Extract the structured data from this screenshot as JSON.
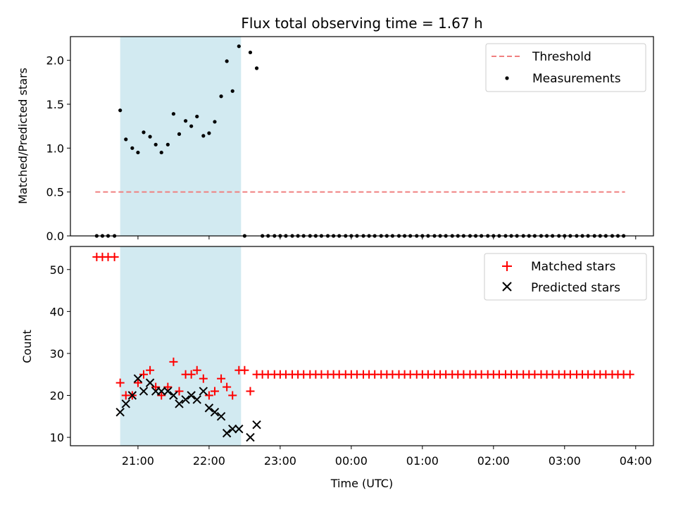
{
  "chart_data": {
    "title": "Flux total observing time = 1.67 h",
    "xlabel": "Time (UTC)",
    "x_unit": "hours_since_20:00_UTC",
    "xlim": [
      0.05,
      8.25
    ],
    "xticks": [
      {
        "v": 1,
        "label": "21:00"
      },
      {
        "v": 2,
        "label": "22:00"
      },
      {
        "v": 3,
        "label": "23:00"
      },
      {
        "v": 4,
        "label": "00:00"
      },
      {
        "v": 5,
        "label": "01:00"
      },
      {
        "v": 6,
        "label": "02:00"
      },
      {
        "v": 7,
        "label": "03:00"
      },
      {
        "v": 8,
        "label": "04:00"
      }
    ],
    "shaded_span": {
      "x0": 0.75,
      "x1": 2.45,
      "color": "#add8e6"
    },
    "panels": [
      {
        "type": "scatter",
        "ylabel": "Matched/Predicted stars",
        "ylim": [
          0,
          2.27
        ],
        "yticks": [
          {
            "v": 0,
            "label": "0.0"
          },
          {
            "v": 0.5,
            "label": "0.5"
          },
          {
            "v": 1.0,
            "label": "1.0"
          },
          {
            "v": 1.5,
            "label": "1.5"
          },
          {
            "v": 2.0,
            "label": "2.0"
          }
        ],
        "legend": {
          "position": "upper-right",
          "entries": [
            "Threshold",
            "Measurements"
          ]
        },
        "threshold": {
          "name": "Threshold",
          "value": 0.5,
          "x_start": 0.4,
          "x_end": 7.85,
          "color": "#f08080"
        },
        "measurements": {
          "name": "Measurements",
          "color": "#000000",
          "points": [
            [
              0.42,
              0
            ],
            [
              0.5,
              0
            ],
            [
              0.58,
              0
            ],
            [
              0.67,
              0
            ],
            [
              0.75,
              1.43
            ],
            [
              0.83,
              1.1
            ],
            [
              0.92,
              1.0
            ],
            [
              1.0,
              0.95
            ],
            [
              1.08,
              1.18
            ],
            [
              1.17,
              1.13
            ],
            [
              1.25,
              1.04
            ],
            [
              1.33,
              0.95
            ],
            [
              1.42,
              1.04
            ],
            [
              1.5,
              1.39
            ],
            [
              1.58,
              1.16
            ],
            [
              1.67,
              1.31
            ],
            [
              1.75,
              1.25
            ],
            [
              1.83,
              1.36
            ],
            [
              1.92,
              1.14
            ],
            [
              2.0,
              1.17
            ],
            [
              2.08,
              1.3
            ],
            [
              2.17,
              1.59
            ],
            [
              2.25,
              1.99
            ],
            [
              2.33,
              1.65
            ],
            [
              2.42,
              2.16
            ],
            [
              2.5,
              0
            ],
            [
              2.58,
              2.09
            ],
            [
              2.67,
              1.91
            ],
            [
              2.75,
              0
            ],
            [
              2.83,
              0
            ],
            [
              2.92,
              0
            ],
            [
              3.0,
              0
            ],
            [
              3.08,
              0
            ],
            [
              3.17,
              0
            ],
            [
              3.25,
              0
            ],
            [
              3.33,
              0
            ],
            [
              3.42,
              0
            ],
            [
              3.5,
              0
            ],
            [
              3.58,
              0
            ],
            [
              3.67,
              0
            ],
            [
              3.75,
              0
            ],
            [
              3.83,
              0
            ],
            [
              3.92,
              0
            ],
            [
              4.0,
              0
            ],
            [
              4.08,
              0
            ],
            [
              4.17,
              0
            ],
            [
              4.25,
              0
            ],
            [
              4.33,
              0
            ],
            [
              4.42,
              0
            ],
            [
              4.5,
              0
            ],
            [
              4.58,
              0
            ],
            [
              4.67,
              0
            ],
            [
              4.75,
              0
            ],
            [
              4.83,
              0
            ],
            [
              4.92,
              0
            ],
            [
              5.0,
              0
            ],
            [
              5.08,
              0
            ],
            [
              5.17,
              0
            ],
            [
              5.25,
              0
            ],
            [
              5.33,
              0
            ],
            [
              5.42,
              0
            ],
            [
              5.5,
              0
            ],
            [
              5.58,
              0
            ],
            [
              5.67,
              0
            ],
            [
              5.75,
              0
            ],
            [
              5.83,
              0
            ],
            [
              5.92,
              0
            ],
            [
              6.0,
              0
            ],
            [
              6.08,
              0
            ],
            [
              6.17,
              0
            ],
            [
              6.25,
              0
            ],
            [
              6.33,
              0
            ],
            [
              6.42,
              0
            ],
            [
              6.5,
              0
            ],
            [
              6.58,
              0
            ],
            [
              6.67,
              0
            ],
            [
              6.75,
              0
            ],
            [
              6.83,
              0
            ],
            [
              6.92,
              0
            ],
            [
              7.0,
              0
            ],
            [
              7.08,
              0
            ],
            [
              7.17,
              0
            ],
            [
              7.25,
              0
            ],
            [
              7.33,
              0
            ],
            [
              7.42,
              0
            ],
            [
              7.5,
              0
            ],
            [
              7.58,
              0
            ],
            [
              7.67,
              0
            ],
            [
              7.75,
              0
            ],
            [
              7.83,
              0
            ]
          ]
        }
      },
      {
        "type": "scatter",
        "ylabel": "Count",
        "ylim": [
          8,
          55.5
        ],
        "yticks": [
          {
            "v": 10,
            "label": "10"
          },
          {
            "v": 20,
            "label": "20"
          },
          {
            "v": 30,
            "label": "30"
          },
          {
            "v": 40,
            "label": "40"
          },
          {
            "v": 50,
            "label": "50"
          }
        ],
        "legend": {
          "position": "upper-right",
          "entries": [
            "Matched stars",
            "Predicted stars"
          ]
        },
        "series": [
          {
            "name": "Matched stars",
            "marker": "plus",
            "color": "#ff0000",
            "points": [
              [
                0.42,
                53
              ],
              [
                0.5,
                53
              ],
              [
                0.58,
                53
              ],
              [
                0.67,
                53
              ],
              [
                0.75,
                23
              ],
              [
                0.83,
                20
              ],
              [
                0.92,
                20
              ],
              [
                1.0,
                23
              ],
              [
                1.08,
                25
              ],
              [
                1.17,
                26
              ],
              [
                1.25,
                22
              ],
              [
                1.33,
                20
              ],
              [
                1.42,
                22
              ],
              [
                1.5,
                28
              ],
              [
                1.58,
                21
              ],
              [
                1.67,
                25
              ],
              [
                1.75,
                25
              ],
              [
                1.83,
                26
              ],
              [
                1.92,
                24
              ],
              [
                2.0,
                20
              ],
              [
                2.08,
                21
              ],
              [
                2.17,
                24
              ],
              [
                2.25,
                22
              ],
              [
                2.33,
                20
              ],
              [
                2.42,
                26
              ],
              [
                2.5,
                26
              ],
              [
                2.58,
                21
              ],
              [
                2.67,
                25
              ],
              [
                2.75,
                25
              ],
              [
                2.83,
                25
              ],
              [
                2.92,
                25
              ],
              [
                3.0,
                25
              ],
              [
                3.08,
                25
              ],
              [
                3.17,
                25
              ],
              [
                3.25,
                25
              ],
              [
                3.33,
                25
              ],
              [
                3.42,
                25
              ],
              [
                3.5,
                25
              ],
              [
                3.58,
                25
              ],
              [
                3.67,
                25
              ],
              [
                3.75,
                25
              ],
              [
                3.83,
                25
              ],
              [
                3.92,
                25
              ],
              [
                4.0,
                25
              ],
              [
                4.08,
                25
              ],
              [
                4.17,
                25
              ],
              [
                4.25,
                25
              ],
              [
                4.33,
                25
              ],
              [
                4.42,
                25
              ],
              [
                4.5,
                25
              ],
              [
                4.58,
                25
              ],
              [
                4.67,
                25
              ],
              [
                4.75,
                25
              ],
              [
                4.83,
                25
              ],
              [
                4.92,
                25
              ],
              [
                5.0,
                25
              ],
              [
                5.08,
                25
              ],
              [
                5.17,
                25
              ],
              [
                5.25,
                25
              ],
              [
                5.33,
                25
              ],
              [
                5.42,
                25
              ],
              [
                5.5,
                25
              ],
              [
                5.58,
                25
              ],
              [
                5.67,
                25
              ],
              [
                5.75,
                25
              ],
              [
                5.83,
                25
              ],
              [
                5.92,
                25
              ],
              [
                6.0,
                25
              ],
              [
                6.08,
                25
              ],
              [
                6.17,
                25
              ],
              [
                6.25,
                25
              ],
              [
                6.33,
                25
              ],
              [
                6.42,
                25
              ],
              [
                6.5,
                25
              ],
              [
                6.58,
                25
              ],
              [
                6.67,
                25
              ],
              [
                6.75,
                25
              ],
              [
                6.83,
                25
              ],
              [
                6.92,
                25
              ],
              [
                7.0,
                25
              ],
              [
                7.08,
                25
              ],
              [
                7.17,
                25
              ],
              [
                7.25,
                25
              ],
              [
                7.33,
                25
              ],
              [
                7.42,
                25
              ],
              [
                7.5,
                25
              ],
              [
                7.58,
                25
              ],
              [
                7.67,
                25
              ],
              [
                7.75,
                25
              ],
              [
                7.83,
                25
              ],
              [
                7.92,
                25
              ]
            ]
          },
          {
            "name": "Predicted stars",
            "marker": "x",
            "color": "#000000",
            "points": [
              [
                0.75,
                16
              ],
              [
                0.83,
                18
              ],
              [
                0.92,
                20
              ],
              [
                1.0,
                24
              ],
              [
                1.08,
                21
              ],
              [
                1.17,
                23
              ],
              [
                1.25,
                21
              ],
              [
                1.33,
                21
              ],
              [
                1.42,
                21
              ],
              [
                1.5,
                20
              ],
              [
                1.58,
                18
              ],
              [
                1.67,
                19
              ],
              [
                1.75,
                20
              ],
              [
                1.83,
                19
              ],
              [
                1.92,
                21
              ],
              [
                2.0,
                17
              ],
              [
                2.08,
                16
              ],
              [
                2.17,
                15
              ],
              [
                2.25,
                11
              ],
              [
                2.33,
                12
              ],
              [
                2.42,
                12
              ],
              [
                2.58,
                10
              ],
              [
                2.67,
                13
              ]
            ]
          }
        ]
      }
    ]
  }
}
